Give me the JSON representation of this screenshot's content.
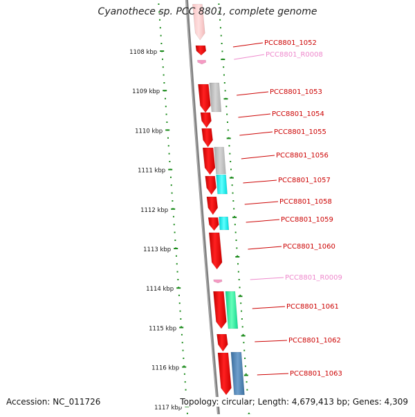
{
  "title": "Cyanothece sp. PCC 8801, complete genome",
  "footer": {
    "accession": "Accession: NC_011726",
    "summary": "Topology: circular; Length: 4,679,413 bp; Genes: 4,309"
  },
  "colors": {
    "cds": "#ee1111",
    "rna": "#f59ac3",
    "gene_label": "#cc0000",
    "rna_label": "#ee88cc",
    "axis": "#808080",
    "tick": "#1a8a1a",
    "gray_feature": "#bdbdbd",
    "cyan_feature": "#17eeee",
    "green_feature": "#22ee99",
    "blue_feature": "#4a7fb0"
  },
  "scale": {
    "ticks": [
      "1108 kbp",
      "1109 kbp",
      "1110 kbp",
      "1111 kbp",
      "1112 kbp",
      "1113 kbp",
      "1114 kbp",
      "1115 kbp",
      "1116 kbp",
      "1117 kbp"
    ]
  },
  "genes": [
    {
      "label": "PCC8801_1052",
      "kind": "cds"
    },
    {
      "label": "PCC8801_R0008",
      "kind": "rna"
    },
    {
      "label": "PCC8801_1053",
      "kind": "cds"
    },
    {
      "label": "PCC8801_1054",
      "kind": "cds"
    },
    {
      "label": "PCC8801_1055",
      "kind": "cds"
    },
    {
      "label": "PCC8801_1056",
      "kind": "cds"
    },
    {
      "label": "PCC8801_1057",
      "kind": "cds"
    },
    {
      "label": "PCC8801_1058",
      "kind": "cds"
    },
    {
      "label": "PCC8801_1059",
      "kind": "cds"
    },
    {
      "label": "PCC8801_1060",
      "kind": "cds"
    },
    {
      "label": "PCC8801_R0009",
      "kind": "rna"
    },
    {
      "label": "PCC8801_1061",
      "kind": "cds"
    },
    {
      "label": "PCC8801_1062",
      "kind": "cds"
    },
    {
      "label": "PCC8801_1063",
      "kind": "cds"
    }
  ]
}
